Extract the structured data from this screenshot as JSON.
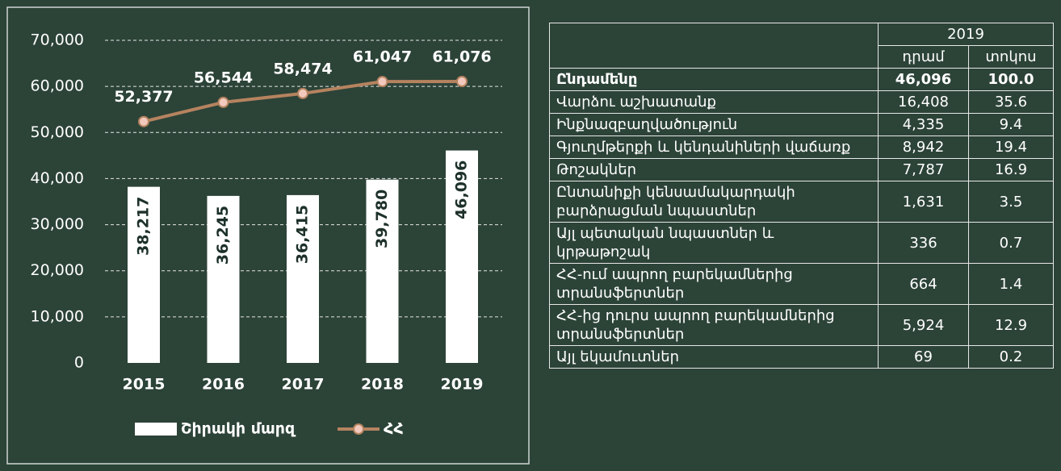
{
  "chart_data": {
    "type": "bar",
    "categories": [
      "2015",
      "2016",
      "2017",
      "2018",
      "2019"
    ],
    "series": [
      {
        "name": "Շիրակի մարզ",
        "type": "bar",
        "color": "#ffffff",
        "values": [
          38217,
          36245,
          36415,
          39780,
          46096
        ],
        "value_labels": [
          "38,217",
          "36,245",
          "36,415",
          "39,780",
          "46,096"
        ]
      },
      {
        "name": "ՀՀ",
        "type": "line",
        "color": "#b5835f",
        "values": [
          52377,
          56544,
          58474,
          61047,
          61076
        ],
        "value_labels": [
          "52,377",
          "56,544",
          "58,474",
          "61,047",
          "61,076"
        ]
      }
    ],
    "ylim": [
      0,
      70000
    ],
    "yticks": [
      0,
      {
        "value": 10000,
        "label": "10,000"
      },
      {
        "value": 20000,
        "label": "20,000"
      },
      {
        "value": 30000,
        "label": "30,000"
      },
      {
        "value": 40000,
        "label": "40,000"
      },
      {
        "value": 50000,
        "label": "50,000"
      },
      {
        "value": 60000,
        "label": "60,000"
      },
      {
        "value": 70000,
        "label": "70,000"
      }
    ],
    "grid": true
  },
  "table": {
    "header": {
      "year": "2019",
      "columns": [
        "դրամ",
        "տոկոս"
      ]
    },
    "rows": [
      [
        "Ընդամենը",
        "46,096",
        "100.0"
      ],
      [
        "Վարձու աշխատանք",
        "16,408",
        "35.6"
      ],
      [
        "Ինքնազբաղվածություն",
        "4,335",
        "9.4"
      ],
      [
        "Գյուղմթերքի և կենդանիների վաճառք",
        "8,942",
        "19.4"
      ],
      [
        "Թոշակներ",
        "7,787",
        "16.9"
      ],
      [
        "Ընտանիքի կենսամակարդակի բարձրացման նպաստներ",
        "1,631",
        "3.5"
      ],
      [
        "Այլ պետական նպաստներ և կրթաթոշակ",
        "336",
        "0.7"
      ],
      [
        "ՀՀ-ում ապրող բարեկամներից տրանսֆերտներ",
        "664",
        "1.4"
      ],
      [
        "ՀՀ-ից դուրս ապրող բարեկամներից տրանսֆերտներ",
        "5,924",
        "12.9"
      ],
      [
        "Այլ եկամուտներ",
        "69",
        "0.2"
      ]
    ]
  }
}
